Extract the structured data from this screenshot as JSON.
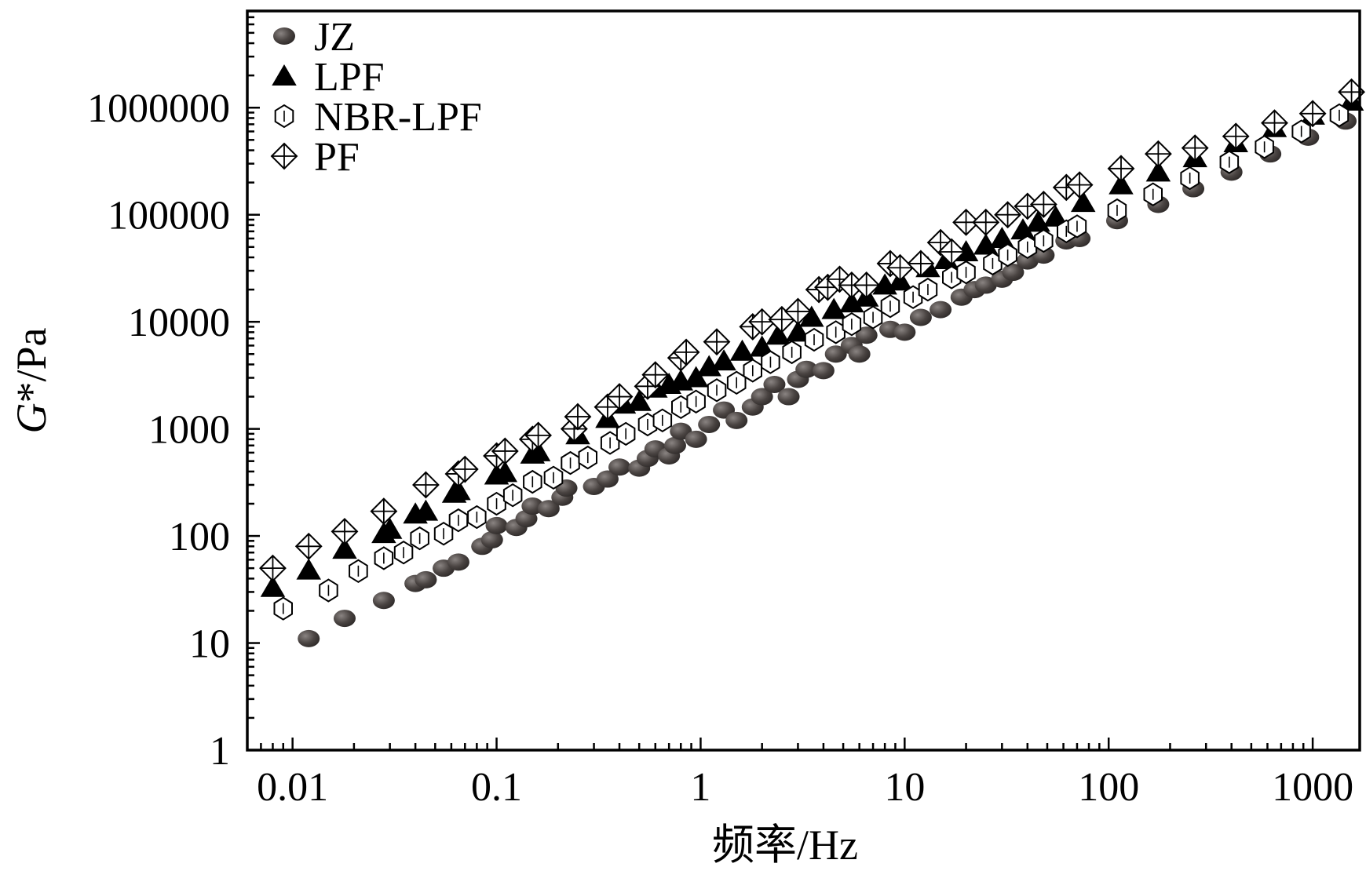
{
  "chart_data": {
    "type": "scatter",
    "title": "",
    "xlabel": "频率/Hz",
    "ylabel_italic": "G",
    "ylabel_rest": "*/Pa",
    "xscale": "log",
    "yscale": "log",
    "xlim": [
      0.006,
      1700
    ],
    "ylim": [
      1,
      8000000
    ],
    "x_tick_labels": [
      {
        "value": 0.01,
        "label": "0.01"
      },
      {
        "value": 0.1,
        "label": "0.1"
      },
      {
        "value": 1,
        "label": "1"
      },
      {
        "value": 10,
        "label": "10"
      },
      {
        "value": 100,
        "label": "100"
      },
      {
        "value": 1000,
        "label": "1000"
      }
    ],
    "y_tick_labels": [
      {
        "value": 1,
        "label": "1"
      },
      {
        "value": 10,
        "label": "10"
      },
      {
        "value": 100,
        "label": "100"
      },
      {
        "value": 1000,
        "label": "1000"
      },
      {
        "value": 10000,
        "label": "10000"
      },
      {
        "value": 100000,
        "label": "100000"
      },
      {
        "value": 1000000,
        "label": "1000000"
      }
    ],
    "legend_position": "top-left",
    "series": [
      {
        "name": "JZ",
        "marker": "filled-circle",
        "points": [
          [
            0.012,
            11
          ],
          [
            0.018,
            17
          ],
          [
            0.028,
            25
          ],
          [
            0.04,
            36
          ],
          [
            0.045,
            39
          ],
          [
            0.055,
            50
          ],
          [
            0.065,
            57
          ],
          [
            0.085,
            80
          ],
          [
            0.095,
            92
          ],
          [
            0.1,
            125
          ],
          [
            0.125,
            120
          ],
          [
            0.14,
            145
          ],
          [
            0.15,
            190
          ],
          [
            0.18,
            180
          ],
          [
            0.21,
            230
          ],
          [
            0.22,
            280
          ],
          [
            0.3,
            290
          ],
          [
            0.35,
            340
          ],
          [
            0.4,
            440
          ],
          [
            0.5,
            430
          ],
          [
            0.55,
            530
          ],
          [
            0.6,
            650
          ],
          [
            0.7,
            560
          ],
          [
            0.75,
            700
          ],
          [
            0.8,
            950
          ],
          [
            0.95,
            800
          ],
          [
            1.1,
            1100
          ],
          [
            1.3,
            1500
          ],
          [
            1.5,
            1200
          ],
          [
            1.8,
            1600
          ],
          [
            2.0,
            2000
          ],
          [
            2.3,
            2600
          ],
          [
            2.7,
            2000
          ],
          [
            3.0,
            2900
          ],
          [
            3.3,
            3600
          ],
          [
            4.0,
            3500
          ],
          [
            4.6,
            5000
          ],
          [
            5.5,
            6000
          ],
          [
            6.0,
            5000
          ],
          [
            6.5,
            7500
          ],
          [
            8.5,
            8500
          ],
          [
            10,
            8000
          ],
          [
            12,
            11000
          ],
          [
            15,
            13000
          ],
          [
            19,
            17000
          ],
          [
            22,
            20000
          ],
          [
            25,
            22000
          ],
          [
            30,
            25000
          ],
          [
            34,
            29000
          ],
          [
            40,
            37000
          ],
          [
            48,
            42000
          ],
          [
            62,
            57000
          ],
          [
            72,
            60000
          ],
          [
            110,
            88000
          ],
          [
            175,
            125000
          ],
          [
            260,
            175000
          ],
          [
            400,
            250000
          ],
          [
            620,
            370000
          ],
          [
            950,
            530000
          ],
          [
            1450,
            750000
          ]
        ]
      },
      {
        "name": "LPF",
        "marker": "filled-triangle",
        "points": [
          [
            0.008,
            33
          ],
          [
            0.012,
            48
          ],
          [
            0.018,
            75
          ],
          [
            0.028,
            105
          ],
          [
            0.03,
            115
          ],
          [
            0.04,
            160
          ],
          [
            0.045,
            170
          ],
          [
            0.062,
            250
          ],
          [
            0.065,
            265
          ],
          [
            0.1,
            370
          ],
          [
            0.11,
            390
          ],
          [
            0.15,
            580
          ],
          [
            0.16,
            610
          ],
          [
            0.25,
            880
          ],
          [
            0.35,
            1250
          ],
          [
            0.42,
            1700
          ],
          [
            0.5,
            1800
          ],
          [
            0.6,
            2400
          ],
          [
            0.7,
            2600
          ],
          [
            0.8,
            2800
          ],
          [
            0.95,
            3000
          ],
          [
            1.1,
            3800
          ],
          [
            1.3,
            4300
          ],
          [
            1.6,
            5300
          ],
          [
            2.0,
            5800
          ],
          [
            2.4,
            7500
          ],
          [
            3.0,
            8000
          ],
          [
            3.5,
            11000
          ],
          [
            4.5,
            13000
          ],
          [
            5.5,
            15000
          ],
          [
            6.5,
            17000
          ],
          [
            8.0,
            22000
          ],
          [
            9.5,
            24000
          ],
          [
            13,
            32000
          ],
          [
            16,
            38000
          ],
          [
            20,
            45000
          ],
          [
            25,
            52000
          ],
          [
            30,
            60000
          ],
          [
            38,
            72000
          ],
          [
            45,
            85000
          ],
          [
            55,
            95000
          ],
          [
            75,
            130000
          ],
          [
            115,
            190000
          ],
          [
            175,
            250000
          ],
          [
            265,
            340000
          ],
          [
            420,
            470000
          ],
          [
            650,
            650000
          ],
          [
            1000,
            850000
          ],
          [
            1550,
            1150000
          ]
        ]
      },
      {
        "name": "NBR-LPF",
        "marker": "open-hexagon",
        "points": [
          [
            0.009,
            21
          ],
          [
            0.015,
            31
          ],
          [
            0.021,
            47
          ],
          [
            0.028,
            62
          ],
          [
            0.035,
            70
          ],
          [
            0.042,
            95
          ],
          [
            0.055,
            105
          ],
          [
            0.065,
            140
          ],
          [
            0.08,
            150
          ],
          [
            0.1,
            200
          ],
          [
            0.12,
            240
          ],
          [
            0.15,
            320
          ],
          [
            0.19,
            350
          ],
          [
            0.23,
            480
          ],
          [
            0.28,
            540
          ],
          [
            0.36,
            740
          ],
          [
            0.43,
            900
          ],
          [
            0.55,
            1100
          ],
          [
            0.65,
            1200
          ],
          [
            0.8,
            1600
          ],
          [
            0.95,
            1800
          ],
          [
            1.2,
            2300
          ],
          [
            1.5,
            2700
          ],
          [
            1.8,
            3500
          ],
          [
            2.2,
            4200
          ],
          [
            2.8,
            5200
          ],
          [
            3.6,
            6800
          ],
          [
            4.6,
            8000
          ],
          [
            5.5,
            9500
          ],
          [
            7.0,
            11000
          ],
          [
            8.5,
            14000
          ],
          [
            11,
            17000
          ],
          [
            13,
            20000
          ],
          [
            17,
            26000
          ],
          [
            20,
            29000
          ],
          [
            27,
            35000
          ],
          [
            32,
            42000
          ],
          [
            40,
            50000
          ],
          [
            48,
            57000
          ],
          [
            62,
            70000
          ],
          [
            70,
            78000
          ],
          [
            110,
            110000
          ],
          [
            165,
            155000
          ],
          [
            250,
            220000
          ],
          [
            390,
            310000
          ],
          [
            580,
            430000
          ],
          [
            880,
            600000
          ],
          [
            1350,
            850000
          ]
        ]
      },
      {
        "name": "PF",
        "marker": "crossed-diamond",
        "points": [
          [
            0.008,
            50
          ],
          [
            0.012,
            80
          ],
          [
            0.018,
            110
          ],
          [
            0.028,
            170
          ],
          [
            0.045,
            300
          ],
          [
            0.065,
            380
          ],
          [
            0.07,
            420
          ],
          [
            0.1,
            560
          ],
          [
            0.11,
            620
          ],
          [
            0.15,
            800
          ],
          [
            0.16,
            870
          ],
          [
            0.24,
            1000
          ],
          [
            0.25,
            1300
          ],
          [
            0.35,
            1600
          ],
          [
            0.4,
            2000
          ],
          [
            0.55,
            2500
          ],
          [
            0.6,
            3200
          ],
          [
            0.8,
            4600
          ],
          [
            0.85,
            5200
          ],
          [
            1.2,
            6500
          ],
          [
            1.8,
            9000
          ],
          [
            2.0,
            10000
          ],
          [
            2.5,
            10500
          ],
          [
            3.0,
            12500
          ],
          [
            3.8,
            20000
          ],
          [
            4.2,
            21000
          ],
          [
            4.8,
            25000
          ],
          [
            5.5,
            22000
          ],
          [
            6.5,
            22000
          ],
          [
            8.5,
            35000
          ],
          [
            9.5,
            32000
          ],
          [
            12,
            35000
          ],
          [
            15,
            55000
          ],
          [
            17,
            45000
          ],
          [
            20,
            85000
          ],
          [
            25,
            85000
          ],
          [
            32,
            100000
          ],
          [
            40,
            120000
          ],
          [
            48,
            125000
          ],
          [
            62,
            180000
          ],
          [
            72,
            190000
          ],
          [
            115,
            270000
          ],
          [
            175,
            370000
          ],
          [
            265,
            420000
          ],
          [
            420,
            540000
          ],
          [
            650,
            720000
          ],
          [
            1000,
            880000
          ],
          [
            1550,
            1400000
          ]
        ]
      }
    ]
  }
}
